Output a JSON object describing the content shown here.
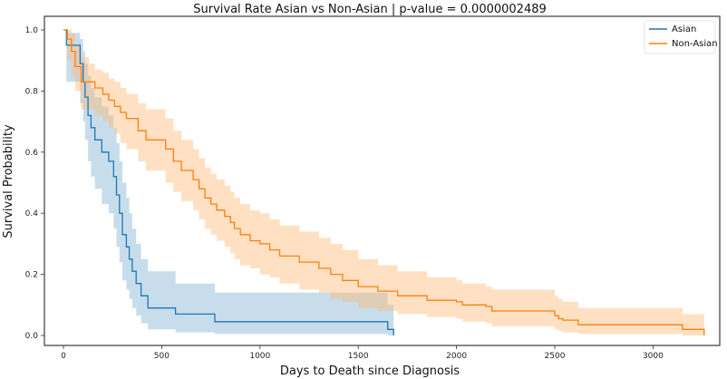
{
  "chart_data": {
    "type": "line",
    "subtype": "kaplan-meier-step",
    "title": "Survival Rate Asian vs Non-Asian | p-value = 0.0000002489",
    "xlabel": "Days to Death since Diagnosis",
    "ylabel": "Survival Probability",
    "xlim": [
      -150,
      3420
    ],
    "ylim": [
      -0.045,
      1.055
    ],
    "xticks": [
      0,
      500,
      1000,
      1500,
      2000,
      2500,
      3000
    ],
    "xtick_labels": [
      "0",
      "500",
      "1000",
      "1500",
      "2000",
      "2500",
      "3000"
    ],
    "yticks": [
      0.0,
      0.2,
      0.4,
      0.6,
      0.8,
      1.0
    ],
    "ytick_labels": [
      "0.0",
      "0.2",
      "0.4",
      "0.6",
      "0.8",
      "1.0"
    ],
    "grid": false,
    "legend": {
      "position": "top-right",
      "entries": [
        "Asian",
        "Non-Asian"
      ]
    },
    "series": [
      {
        "name": "Asian",
        "color": "#1f77b4",
        "ci_color": "#1f77b4",
        "t": [
          0,
          15,
          85,
          100,
          110,
          125,
          140,
          160,
          195,
          230,
          255,
          270,
          285,
          300,
          320,
          335,
          350,
          370,
          395,
          430,
          570,
          770,
          1650,
          1680
        ],
        "s": [
          1.0,
          0.95,
          0.89,
          0.83,
          0.78,
          0.72,
          0.68,
          0.64,
          0.6,
          0.57,
          0.52,
          0.46,
          0.4,
          0.33,
          0.29,
          0.25,
          0.21,
          0.17,
          0.13,
          0.09,
          0.07,
          0.045,
          0.02,
          0.0
        ],
        "lower": [
          1.0,
          0.83,
          0.76,
          0.7,
          0.64,
          0.57,
          0.52,
          0.48,
          0.43,
          0.4,
          0.35,
          0.29,
          0.24,
          0.18,
          0.15,
          0.12,
          0.09,
          0.065,
          0.04,
          0.02,
          0.01,
          0.005,
          0.0,
          0.0
        ],
        "upper": [
          1.0,
          0.99,
          0.97,
          0.93,
          0.89,
          0.85,
          0.81,
          0.78,
          0.75,
          0.72,
          0.68,
          0.63,
          0.57,
          0.5,
          0.45,
          0.4,
          0.35,
          0.3,
          0.25,
          0.21,
          0.17,
          0.14,
          0.1,
          0.1
        ]
      },
      {
        "name": "Non-Asian",
        "color": "#ff7f0e",
        "ci_color": "#ffbb78",
        "t": [
          0,
          20,
          40,
          60,
          90,
          130,
          160,
          200,
          230,
          260,
          290,
          320,
          380,
          420,
          450,
          470,
          500,
          520,
          560,
          600,
          660,
          690,
          720,
          750,
          780,
          820,
          850,
          870,
          900,
          950,
          1000,
          1050,
          1100,
          1200,
          1300,
          1360,
          1420,
          1500,
          1600,
          1700,
          1850,
          2000,
          2030,
          2150,
          2180,
          2300,
          2500,
          2520,
          2540,
          2620,
          3150,
          3260
        ],
        "s": [
          1.0,
          0.97,
          0.93,
          0.88,
          0.83,
          0.83,
          0.81,
          0.79,
          0.77,
          0.75,
          0.73,
          0.71,
          0.67,
          0.64,
          0.64,
          0.64,
          0.64,
          0.61,
          0.57,
          0.54,
          0.51,
          0.48,
          0.45,
          0.43,
          0.41,
          0.39,
          0.37,
          0.35,
          0.33,
          0.31,
          0.3,
          0.28,
          0.26,
          0.24,
          0.22,
          0.2,
          0.18,
          0.16,
          0.145,
          0.13,
          0.115,
          0.11,
          0.1,
          0.095,
          0.08,
          0.08,
          0.065,
          0.055,
          0.05,
          0.035,
          0.02,
          0.0
        ],
        "lower": [
          1.0,
          0.9,
          0.85,
          0.8,
          0.74,
          0.74,
          0.72,
          0.7,
          0.68,
          0.66,
          0.63,
          0.61,
          0.57,
          0.54,
          0.54,
          0.54,
          0.54,
          0.5,
          0.47,
          0.44,
          0.41,
          0.38,
          0.35,
          0.33,
          0.31,
          0.29,
          0.27,
          0.25,
          0.23,
          0.22,
          0.2,
          0.19,
          0.17,
          0.15,
          0.14,
          0.12,
          0.11,
          0.09,
          0.08,
          0.07,
          0.06,
          0.055,
          0.045,
          0.04,
          0.03,
          0.03,
          0.02,
          0.015,
          0.01,
          0.005,
          0.0,
          0.0
        ],
        "upper": [
          1.0,
          1.0,
          0.99,
          0.95,
          0.91,
          0.89,
          0.87,
          0.86,
          0.84,
          0.83,
          0.81,
          0.79,
          0.76,
          0.74,
          0.74,
          0.74,
          0.74,
          0.71,
          0.67,
          0.64,
          0.61,
          0.58,
          0.55,
          0.53,
          0.51,
          0.49,
          0.47,
          0.45,
          0.43,
          0.41,
          0.4,
          0.38,
          0.36,
          0.34,
          0.32,
          0.3,
          0.28,
          0.25,
          0.23,
          0.21,
          0.19,
          0.18,
          0.17,
          0.16,
          0.15,
          0.15,
          0.13,
          0.12,
          0.11,
          0.09,
          0.07,
          0.07
        ]
      }
    ]
  }
}
